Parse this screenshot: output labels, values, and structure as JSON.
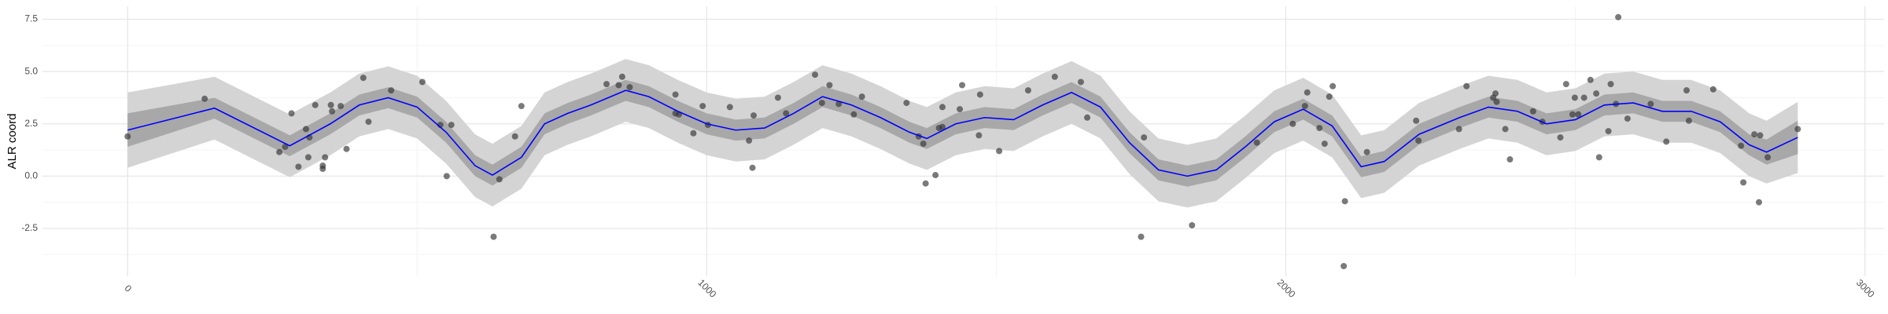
{
  "chart_data": {
    "type": "smooth_scatter",
    "y_label": "ALR coord",
    "xlim": [
      -147,
      3033
    ],
    "ylim": [
      -4.79,
      8.12
    ],
    "xticks": [
      0,
      1000,
      2000,
      3000
    ],
    "yticks": [
      {
        "value": -2.5,
        "label": "-2.5"
      },
      {
        "value": 0,
        "label": "0.0"
      },
      {
        "value": 2.5,
        "label": "2.5"
      },
      {
        "value": 5,
        "label": "5.0"
      },
      {
        "value": 7.5,
        "label": "7.5"
      }
    ],
    "x_minor_grid": [
      500,
      1500,
      2500
    ],
    "y_minor_grid": [
      -3.75,
      -1.25,
      1.25,
      3.75,
      6.25
    ],
    "grid": true,
    "fit": {
      "color": "#0000ff",
      "x": [
        0,
        100,
        150,
        280,
        350,
        400,
        450,
        500,
        550,
        600,
        630,
        680,
        720,
        760,
        800,
        860,
        900,
        950,
        1000,
        1050,
        1100,
        1150,
        1200,
        1250,
        1300,
        1350,
        1380,
        1430,
        1480,
        1530,
        1580,
        1630,
        1680,
        1730,
        1780,
        1830,
        1880,
        1930,
        1980,
        2030,
        2080,
        2130,
        2170,
        2230,
        2300,
        2350,
        2400,
        2450,
        2500,
        2550,
        2600,
        2650,
        2700,
        2750,
        2800,
        2830,
        2884
      ],
      "values": [
        2.2,
        2.9,
        3.25,
        1.45,
        2.5,
        3.4,
        3.75,
        3.3,
        2.1,
        0.5,
        0.05,
        0.9,
        2.5,
        3.0,
        3.4,
        4.1,
        3.8,
        3.1,
        2.5,
        2.2,
        2.3,
        3.0,
        3.8,
        3.4,
        2.8,
        2.1,
        1.8,
        2.5,
        2.8,
        2.7,
        3.4,
        4.0,
        3.3,
        1.6,
        0.3,
        0.0,
        0.3,
        1.4,
        2.6,
        3.2,
        2.4,
        0.45,
        0.7,
        2.0,
        2.8,
        3.3,
        3.1,
        2.5,
        2.7,
        3.4,
        3.5,
        3.1,
        3.1,
        2.6,
        1.5,
        1.15,
        1.85
      ]
    },
    "ribbons": [
      {
        "color": "#d4d4d4",
        "lower": [
          0.4,
          1.3,
          1.75,
          -0.05,
          1.0,
          1.9,
          2.25,
          1.8,
          0.6,
          -1.0,
          -1.45,
          -0.6,
          1.0,
          1.5,
          1.9,
          2.6,
          2.3,
          1.6,
          1.0,
          0.7,
          0.8,
          1.5,
          2.3,
          1.9,
          1.3,
          0.6,
          0.3,
          1.0,
          1.3,
          1.2,
          1.9,
          2.5,
          1.8,
          0.1,
          -1.2,
          -1.5,
          -1.2,
          -0.1,
          1.1,
          1.7,
          0.9,
          -1.05,
          -0.8,
          0.5,
          1.3,
          1.8,
          1.6,
          1.0,
          1.2,
          1.9,
          2.0,
          1.6,
          1.6,
          1.1,
          0.0,
          -0.35,
          0.15
        ],
        "upper": [
          4.0,
          4.5,
          4.75,
          2.95,
          4.0,
          4.9,
          5.25,
          4.8,
          3.6,
          2.0,
          1.55,
          2.4,
          4.0,
          4.5,
          4.9,
          5.6,
          5.3,
          4.6,
          4.0,
          3.7,
          3.8,
          4.5,
          5.3,
          4.9,
          4.3,
          3.6,
          3.3,
          4.0,
          4.3,
          4.2,
          4.9,
          5.5,
          4.8,
          3.1,
          1.8,
          1.5,
          1.8,
          2.9,
          4.1,
          4.7,
          3.9,
          1.95,
          2.2,
          3.5,
          4.3,
          4.8,
          4.6,
          4.0,
          4.2,
          4.9,
          5.0,
          4.6,
          4.6,
          4.1,
          3.0,
          2.65,
          3.55
        ]
      },
      {
        "color": "#a8a8a8",
        "lower": [
          1.4,
          2.3,
          2.75,
          0.95,
          2.0,
          2.9,
          3.25,
          2.8,
          1.6,
          0.0,
          -0.45,
          0.4,
          2.0,
          2.5,
          2.9,
          3.6,
          3.3,
          2.6,
          2.0,
          1.7,
          1.8,
          2.5,
          3.3,
          2.9,
          2.3,
          1.6,
          1.3,
          2.0,
          2.3,
          2.2,
          2.9,
          3.5,
          2.8,
          1.1,
          -0.2,
          -0.5,
          -0.2,
          0.9,
          2.1,
          2.7,
          1.9,
          -0.05,
          0.2,
          1.5,
          2.3,
          2.8,
          2.6,
          2.0,
          2.2,
          2.9,
          3.0,
          2.6,
          2.6,
          2.1,
          1.0,
          0.55,
          1.05
        ],
        "upper": [
          3.0,
          3.5,
          3.75,
          1.95,
          3.0,
          3.9,
          4.25,
          3.8,
          2.6,
          1.0,
          0.55,
          1.4,
          3.0,
          3.5,
          3.9,
          4.6,
          4.3,
          3.6,
          3.0,
          2.7,
          2.8,
          3.5,
          4.3,
          3.9,
          3.3,
          2.6,
          2.3,
          3.0,
          3.3,
          3.2,
          3.9,
          4.5,
          3.8,
          2.1,
          0.8,
          0.5,
          0.8,
          1.9,
          3.1,
          3.7,
          2.9,
          0.95,
          1.2,
          2.5,
          3.3,
          3.8,
          3.6,
          3.0,
          3.2,
          3.9,
          4.0,
          3.6,
          3.6,
          3.1,
          2.0,
          1.75,
          2.65
        ]
      }
    ],
    "points": {
      "color": "#333333",
      "x": [
        0,
        133,
        262,
        272,
        283,
        295,
        308,
        312,
        314,
        324,
        337,
        337,
        341,
        351,
        353,
        368,
        378,
        407,
        416,
        455,
        509,
        540,
        551,
        559,
        632,
        642,
        669,
        680,
        827,
        848,
        854,
        867,
        946,
        946,
        952,
        977,
        993,
        1002,
        1040,
        1073,
        1079,
        1081,
        1123,
        1137,
        1187,
        1199,
        1212,
        1228,
        1254,
        1268,
        1345,
        1366,
        1374,
        1378,
        1395,
        1401,
        1407,
        1407,
        1437,
        1441,
        1472,
        1470,
        1505,
        1555,
        1601,
        1646,
        1657,
        1750,
        1755,
        1838,
        1950,
        2012,
        2033,
        2037,
        2058,
        2067,
        2075,
        2081,
        2102,
        2100,
        2140,
        2225,
        2229,
        2299,
        2312,
        2358,
        2362,
        2364,
        2379,
        2387,
        2427,
        2443,
        2474,
        2484,
        2495,
        2499,
        2505,
        2515,
        2526,
        2536,
        2541,
        2557,
        2561,
        2570,
        2574,
        2590,
        2630,
        2657,
        2692,
        2696,
        2738,
        2786,
        2790,
        2809,
        2817,
        2819,
        2832,
        2884
      ],
      "y": [
        1.9,
        3.7,
        1.15,
        1.4,
        3.0,
        0.45,
        2.25,
        0.9,
        1.85,
        3.4,
        0.35,
        0.5,
        0.9,
        3.4,
        3.1,
        3.35,
        1.3,
        4.7,
        2.6,
        4.1,
        4.5,
        2.45,
        0.0,
        2.45,
        -2.9,
        -0.15,
        1.9,
        3.35,
        4.4,
        4.35,
        4.75,
        4.25,
        3.9,
        3.0,
        2.95,
        2.05,
        3.35,
        2.45,
        3.3,
        1.7,
        0.4,
        2.9,
        3.75,
        3.0,
        4.85,
        3.5,
        4.35,
        3.45,
        2.95,
        3.8,
        3.5,
        1.9,
        1.55,
        -0.35,
        0.05,
        2.3,
        2.35,
        3.3,
        3.2,
        4.35,
        3.9,
        1.95,
        1.2,
        4.1,
        4.75,
        4.5,
        2.8,
        -2.9,
        1.85,
        -2.35,
        1.6,
        2.5,
        3.35,
        4.0,
        2.3,
        1.55,
        3.8,
        4.3,
        -1.2,
        -4.3,
        1.15,
        2.65,
        1.7,
        2.25,
        4.3,
        3.75,
        3.95,
        3.55,
        2.25,
        0.8,
        3.1,
        2.6,
        1.85,
        4.4,
        2.95,
        3.75,
        2.95,
        3.75,
        4.6,
        3.95,
        0.9,
        2.15,
        4.4,
        3.45,
        7.6,
        2.75,
        3.45,
        1.65,
        4.1,
        2.65,
        4.15,
        1.45,
        -0.3,
        2.0,
        -1.25,
        1.95,
        0.9,
        2.25
      ]
    }
  }
}
